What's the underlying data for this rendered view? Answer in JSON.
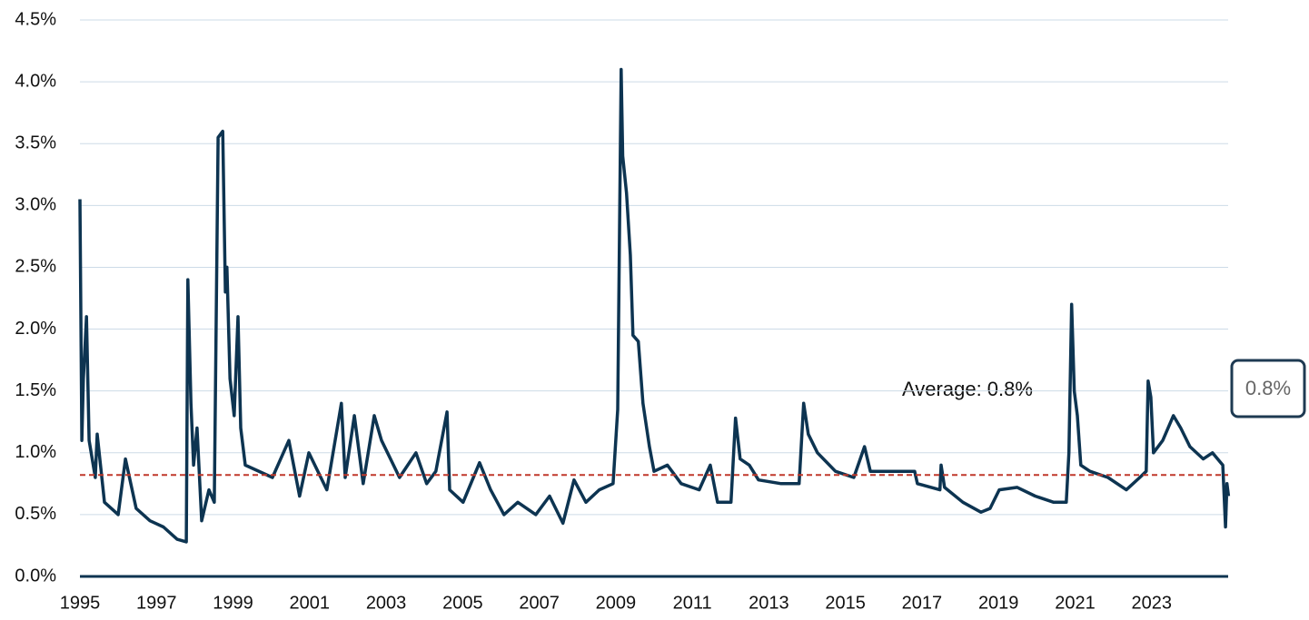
{
  "chart_data": {
    "type": "line",
    "x": [
      1995.0,
      1995.05,
      1995.09,
      1995.17,
      1995.24,
      1995.4,
      1995.45,
      1995.64,
      1996.0,
      1996.19,
      1996.47,
      1996.83,
      1997.18,
      1997.54,
      1997.78,
      1997.82,
      1997.9,
      1997.97,
      1998.06,
      1998.18,
      1998.37,
      1998.51,
      1998.61,
      1998.73,
      1998.8,
      1998.84,
      1998.92,
      1999.03,
      1999.13,
      1999.2,
      1999.32,
      2000.03,
      2000.46,
      2000.74,
      2000.98,
      2001.45,
      2001.83,
      2001.93,
      2002.17,
      2002.4,
      2002.69,
      2002.88,
      2003.35,
      2003.78,
      2004.06,
      2004.3,
      2004.59,
      2004.66,
      2005.01,
      2005.44,
      2005.73,
      2006.08,
      2006.44,
      2006.91,
      2007.27,
      2007.62,
      2007.91,
      2008.22,
      2008.57,
      2008.93,
      2009.05,
      2009.14,
      2009.18,
      2009.28,
      2009.38,
      2009.45,
      2009.59,
      2009.71,
      2009.88,
      2010.0,
      2010.35,
      2010.71,
      2011.18,
      2011.47,
      2011.66,
      2012.01,
      2012.13,
      2012.25,
      2012.49,
      2012.73,
      2013.32,
      2013.79,
      2013.91,
      2014.03,
      2014.27,
      2014.74,
      2015.22,
      2015.5,
      2015.65,
      2016.05,
      2016.64,
      2016.81,
      2016.88,
      2017.47,
      2017.5,
      2017.59,
      2018.07,
      2018.54,
      2018.78,
      2019.02,
      2019.49,
      2019.96,
      2020.44,
      2020.77,
      2020.84,
      2020.91,
      2020.98,
      2021.06,
      2021.15,
      2021.39,
      2021.86,
      2022.34,
      2022.69,
      2022.86,
      2022.91,
      2022.98,
      2023.05,
      2023.29,
      2023.57,
      2023.76,
      2024.0,
      2024.35,
      2024.59,
      2024.86,
      2024.93,
      2024.97,
      2025.01
    ],
    "series": [
      {
        "color": "#0d3451",
        "values": [
          3.05,
          1.1,
          1.6,
          2.1,
          1.1,
          0.8,
          1.15,
          0.6,
          0.5,
          0.95,
          0.55,
          0.45,
          0.4,
          0.3,
          0.28,
          2.4,
          1.4,
          0.9,
          1.2,
          0.45,
          0.7,
          0.6,
          3.55,
          3.6,
          2.3,
          2.5,
          1.6,
          1.3,
          2.1,
          1.2,
          0.9,
          0.8,
          1.1,
          0.65,
          1.0,
          0.7,
          1.4,
          0.8,
          1.3,
          0.75,
          1.3,
          1.1,
          0.8,
          1.0,
          0.75,
          0.85,
          1.33,
          0.7,
          0.6,
          0.92,
          0.7,
          0.5,
          0.6,
          0.5,
          0.65,
          0.43,
          0.78,
          0.6,
          0.7,
          0.75,
          1.35,
          4.1,
          3.4,
          3.1,
          2.6,
          1.95,
          1.9,
          1.4,
          1.05,
          0.85,
          0.9,
          0.75,
          0.7,
          0.9,
          0.6,
          0.6,
          1.28,
          0.95,
          0.9,
          0.78,
          0.75,
          0.75,
          1.4,
          1.15,
          1.0,
          0.85,
          0.8,
          1.05,
          0.85,
          0.85,
          0.85,
          0.85,
          0.75,
          0.7,
          0.9,
          0.72,
          0.6,
          0.52,
          0.55,
          0.7,
          0.72,
          0.65,
          0.6,
          0.6,
          1.0,
          2.2,
          1.5,
          1.3,
          0.9,
          0.85,
          0.8,
          0.7,
          0.8,
          0.85,
          1.58,
          1.45,
          1.0,
          1.1,
          1.3,
          1.2,
          1.05,
          0.95,
          1.0,
          0.9,
          0.4,
          0.75,
          0.65
        ]
      }
    ],
    "average": 0.82,
    "average_color": "#c0392b",
    "annotation": "Average: 0.8%",
    "end_label": "0.8%",
    "xlim": [
      1995,
      2025
    ],
    "xticks": [
      1995,
      1997,
      1999,
      2001,
      2003,
      2005,
      2007,
      2009,
      2011,
      2013,
      2015,
      2017,
      2019,
      2021,
      2023
    ],
    "ylim": [
      0,
      4.5
    ],
    "yticks": [
      {
        "value": 0,
        "label": "0.0%"
      },
      {
        "value": 0.5,
        "label": "0.5%"
      },
      {
        "value": 1,
        "label": "1.0%"
      },
      {
        "value": 1.5,
        "label": "1.5%"
      },
      {
        "value": 2,
        "label": "2.0%"
      },
      {
        "value": 2.5,
        "label": "2.5%"
      },
      {
        "value": 3,
        "label": "3.0%"
      },
      {
        "value": 3.5,
        "label": "3.5%"
      },
      {
        "value": 4,
        "label": "4.0%"
      },
      {
        "value": 4.5,
        "label": "4.5%"
      }
    ],
    "grid": true
  }
}
